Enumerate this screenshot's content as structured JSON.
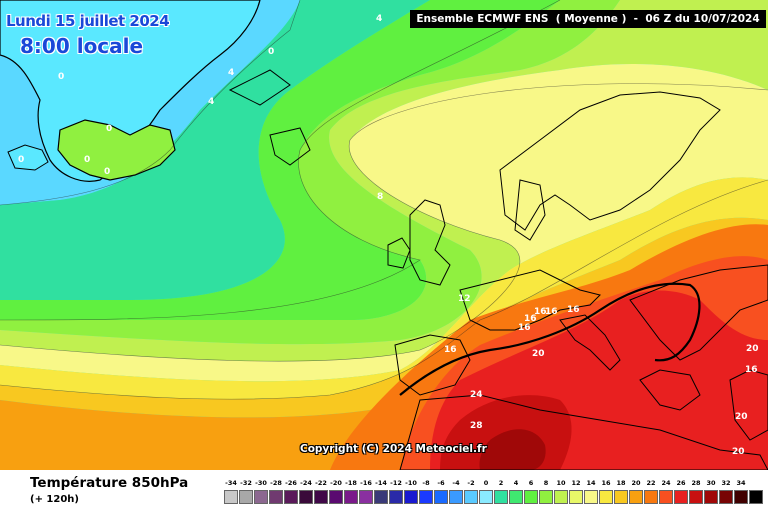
{
  "header": {
    "date": "Lundi 15 juillet 2024",
    "local_time": "8:00 locale",
    "model_run": "Ensemble ECMWF ENS  ( Moyenne )  -  06 Z du 10/07/2024"
  },
  "copyright": "Copyright (C) 2024 Meteociel.fr",
  "footer": {
    "parameter": "Température 850hPa",
    "lead_time": "(+ 120h)"
  },
  "legend": {
    "unit_values": [
      "-34",
      "-32",
      "-30",
      "-28",
      "-26",
      "-24",
      "-22",
      "-20",
      "-18",
      "-16",
      "-14",
      "-12",
      "-10",
      "-8",
      "-6",
      "-4",
      "-2",
      "0",
      "2",
      "4",
      "6",
      "8",
      "10",
      "12",
      "14",
      "16",
      "18",
      "20",
      "22",
      "24",
      "26",
      "28",
      "30",
      "32",
      "34"
    ],
    "colors": [
      "#c8c8c8",
      "#a8a8a8",
      "#8c6890",
      "#703a70",
      "#5a1a5a",
      "#3a0a3a",
      "#400848",
      "#5a0a70",
      "#7a1a8a",
      "#8a30a0",
      "#3a3a78",
      "#2a2aa8",
      "#1a1ad0",
      "#1a3aff",
      "#1a6aff",
      "#3a9aff",
      "#5acaff",
      "#8aeaff",
      "#30e0a0",
      "#40e870",
      "#60f040",
      "#90f040",
      "#c0f050",
      "#e8f868",
      "#f8f888",
      "#f8e840",
      "#f8c820",
      "#f8a010",
      "#f87810",
      "#f85020",
      "#e82020",
      "#c81010",
      "#a00808",
      "#780404",
      "#400000",
      "#000000"
    ]
  },
  "isotherm_labels": [
    {
      "text": "4"
    },
    {
      "text": "0"
    },
    {
      "text": "0"
    },
    {
      "text": "4"
    },
    {
      "text": "4"
    },
    {
      "text": "0"
    },
    {
      "text": "0"
    },
    {
      "text": "0"
    },
    {
      "text": "0"
    },
    {
      "text": "8"
    },
    {
      "text": "12"
    },
    {
      "text": "16"
    },
    {
      "text": "16"
    },
    {
      "text": "16"
    },
    {
      "text": "16"
    },
    {
      "text": "16"
    },
    {
      "text": "16"
    },
    {
      "text": "20"
    },
    {
      "text": "24"
    },
    {
      "text": "28"
    },
    {
      "text": "20"
    },
    {
      "text": "16"
    },
    {
      "text": "20"
    },
    {
      "text": "20"
    }
  ]
}
